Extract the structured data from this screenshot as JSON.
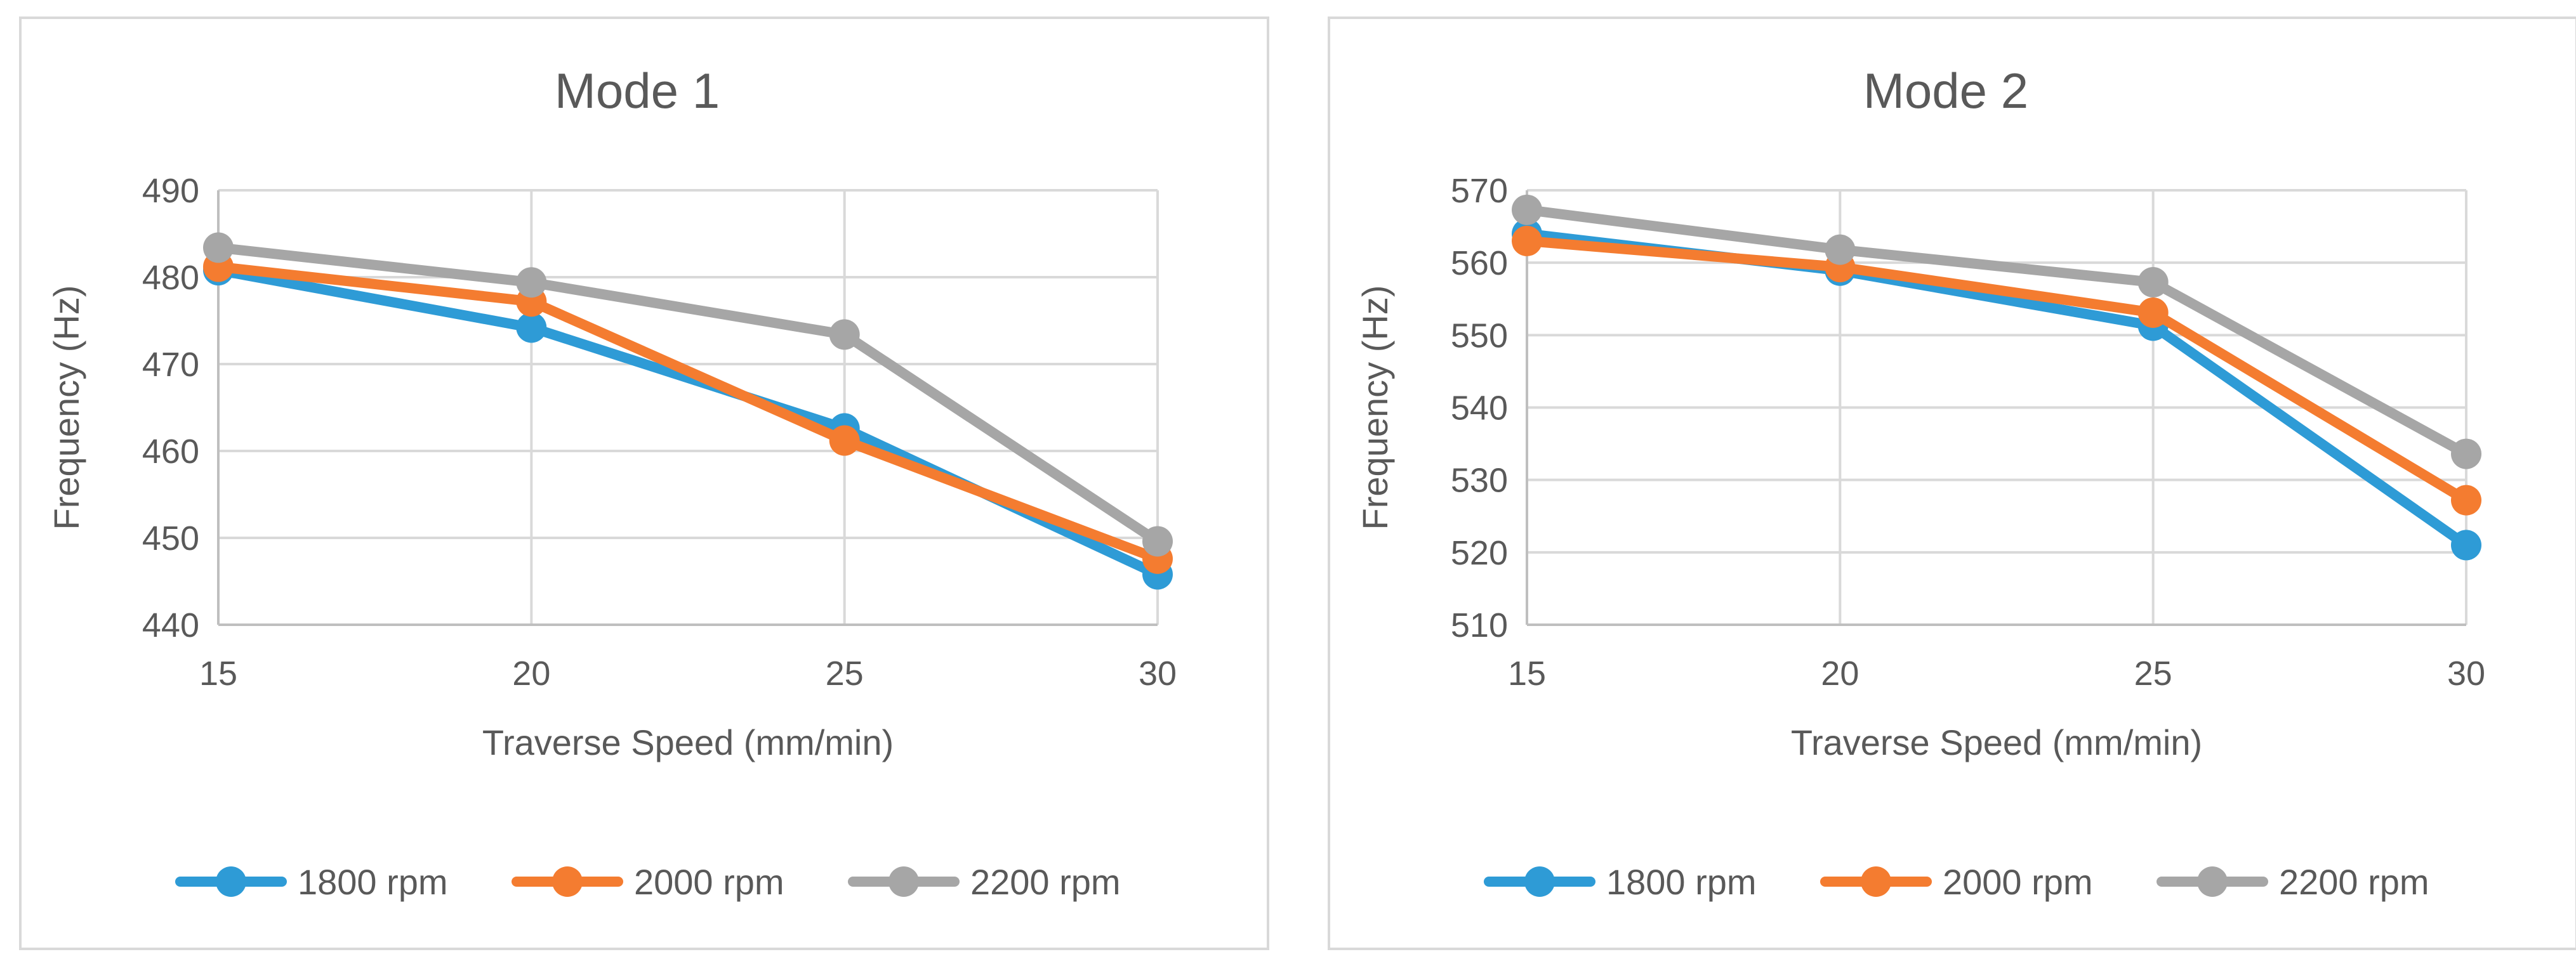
{
  "chart_data": [
    {
      "type": "line",
      "title": "Mode 1",
      "xlabel": "Traverse Speed (mm/min)",
      "ylabel": "Frequency (Hz)",
      "x": [
        15,
        20,
        25,
        30
      ],
      "x_tick_labels": [
        "15",
        "20",
        "25",
        "30"
      ],
      "ylim": [
        440,
        490
      ],
      "y_ticks": [
        440,
        450,
        460,
        470,
        480,
        490
      ],
      "y_tick_labels": [
        "440",
        "450",
        "460",
        "470",
        "480",
        "490"
      ],
      "grid": true,
      "legend_position": "bottom",
      "series": [
        {
          "name": "1800 rpm",
          "color": "#2e9bd6",
          "values": [
            480.8,
            474.2,
            462.6,
            445.8
          ]
        },
        {
          "name": "2000 rpm",
          "color": "#f47c30",
          "values": [
            481.2,
            477.2,
            461.2,
            447.6
          ]
        },
        {
          "name": "2200 rpm",
          "color": "#a6a6a6",
          "values": [
            483.4,
            479.4,
            473.4,
            449.6
          ]
        }
      ]
    },
    {
      "type": "line",
      "title": "Mode 2",
      "xlabel": "Traverse Speed (mm/min)",
      "ylabel": "Frequency (Hz)",
      "x": [
        15,
        20,
        25,
        30
      ],
      "x_tick_labels": [
        "15",
        "20",
        "25",
        "30"
      ],
      "ylim": [
        510,
        570
      ],
      "y_ticks": [
        510,
        520,
        530,
        540,
        550,
        560,
        570
      ],
      "y_tick_labels": [
        "510",
        "520",
        "530",
        "540",
        "550",
        "560",
        "570"
      ],
      "grid": true,
      "legend_position": "bottom",
      "series": [
        {
          "name": "1800 rpm",
          "color": "#2e9bd6",
          "values": [
            564.0,
            558.9,
            551.3,
            521.0
          ]
        },
        {
          "name": "2000 rpm",
          "color": "#f47c30",
          "values": [
            563.0,
            559.4,
            553.1,
            527.2
          ]
        },
        {
          "name": "2200 rpm",
          "color": "#a6a6a6",
          "values": [
            567.3,
            561.8,
            557.3,
            533.6
          ]
        }
      ]
    }
  ]
}
